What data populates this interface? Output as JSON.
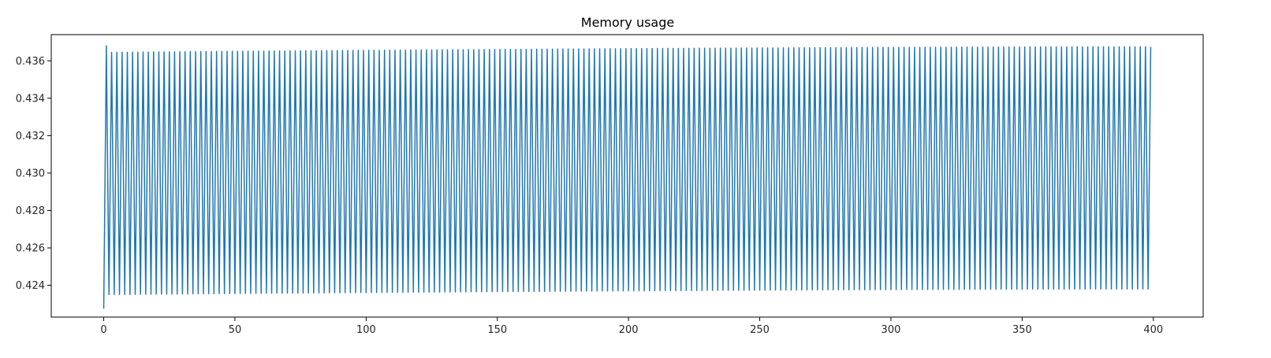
{
  "chart_data": {
    "type": "line",
    "title": "Memory usage",
    "xlabel": "",
    "ylabel": "",
    "xlim": [
      -20,
      419
    ],
    "ylim": [
      0.4223,
      0.4374
    ],
    "x_ticks": [
      0,
      50,
      100,
      150,
      200,
      250,
      300,
      350,
      400
    ],
    "y_ticks": [
      0.424,
      0.426,
      0.428,
      0.43,
      0.432,
      0.434,
      0.436
    ],
    "y_tick_labels": [
      "0.424",
      "0.426",
      "0.428",
      "0.430",
      "0.432",
      "0.434",
      "0.436"
    ],
    "grid": false,
    "legend": "none",
    "series_color": "#1f77b4",
    "series": [
      {
        "description_pattern": "alternating low/high each step",
        "x_start": 0,
        "x_end": 399,
        "first_point": [
          0,
          0.42275
        ],
        "second_point": [
          1,
          0.4368
        ],
        "low_values_start": 0.4235,
        "low_values_end": 0.4238,
        "high_values_start": 0.43645,
        "high_values_end": 0.43675,
        "last_point": [
          399,
          0.43675
        ]
      }
    ]
  }
}
